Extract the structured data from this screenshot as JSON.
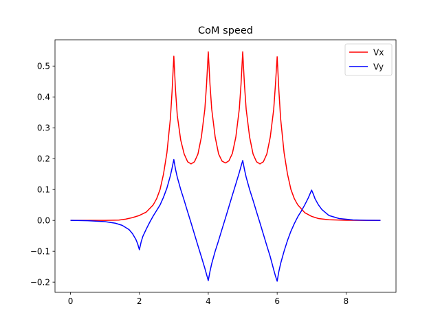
{
  "chart_data": {
    "type": "line",
    "title": "CoM speed",
    "xlabel": "",
    "ylabel": "",
    "xlim": [
      -0.45,
      9.45
    ],
    "ylim": [
      -0.233,
      0.585
    ],
    "xticks": [
      0,
      2,
      4,
      6,
      8
    ],
    "yticks": [
      -0.2,
      -0.1,
      0.0,
      0.1,
      0.2,
      0.3,
      0.4,
      0.5
    ],
    "ytick_labels": [
      "−0.2",
      "−0.1",
      "0.0",
      "0.1",
      "0.2",
      "0.3",
      "0.4",
      "0.5"
    ],
    "xtick_labels": [
      "0",
      "2",
      "4",
      "6",
      "8"
    ],
    "grid": false,
    "legend_position": "top-right",
    "series": [
      {
        "name": "Vx",
        "color": "#ff0000",
        "x": [
          0,
          0.5,
          1.0,
          1.4,
          1.6,
          1.8,
          2.0,
          2.2,
          2.4,
          2.5,
          2.6,
          2.7,
          2.8,
          2.9,
          2.95,
          3.0,
          3.05,
          3.1,
          3.2,
          3.3,
          3.4,
          3.5,
          3.6,
          3.7,
          3.8,
          3.9,
          3.95,
          4.0,
          4.05,
          4.1,
          4.2,
          4.3,
          4.4,
          4.5,
          4.6,
          4.7,
          4.8,
          4.9,
          4.95,
          5.0,
          5.05,
          5.1,
          5.2,
          5.3,
          5.4,
          5.5,
          5.6,
          5.7,
          5.8,
          5.9,
          5.95,
          6.0,
          6.05,
          6.1,
          6.2,
          6.3,
          6.4,
          6.5,
          6.6,
          6.8,
          7.0,
          7.2,
          7.5,
          8.0,
          8.5,
          9.0
        ],
        "y": [
          0.0,
          0.0,
          0.0,
          0.001,
          0.004,
          0.009,
          0.016,
          0.027,
          0.05,
          0.07,
          0.1,
          0.15,
          0.22,
          0.33,
          0.42,
          0.532,
          0.42,
          0.34,
          0.26,
          0.215,
          0.19,
          0.183,
          0.19,
          0.215,
          0.27,
          0.36,
          0.44,
          0.546,
          0.44,
          0.36,
          0.27,
          0.215,
          0.192,
          0.186,
          0.193,
          0.217,
          0.27,
          0.36,
          0.44,
          0.546,
          0.44,
          0.36,
          0.27,
          0.215,
          0.19,
          0.183,
          0.19,
          0.215,
          0.27,
          0.36,
          0.44,
          0.53,
          0.42,
          0.33,
          0.22,
          0.15,
          0.1,
          0.07,
          0.05,
          0.025,
          0.013,
          0.006,
          0.002,
          0.0005,
          0.0001,
          0.0
        ]
      },
      {
        "name": "Vy",
        "color": "#0000ff",
        "x": [
          0,
          0.5,
          1.0,
          1.3,
          1.5,
          1.7,
          1.8,
          1.9,
          1.95,
          2.0,
          2.05,
          2.1,
          2.2,
          2.3,
          2.4,
          2.5,
          2.6,
          2.7,
          2.8,
          2.9,
          2.95,
          3.0,
          3.05,
          3.1,
          3.2,
          3.3,
          3.4,
          3.5,
          3.6,
          3.7,
          3.8,
          3.9,
          3.95,
          4.0,
          4.05,
          4.1,
          4.2,
          4.3,
          4.4,
          4.5,
          4.6,
          4.7,
          4.8,
          4.9,
          4.95,
          5.0,
          5.05,
          5.1,
          5.2,
          5.3,
          5.4,
          5.5,
          5.6,
          5.7,
          5.8,
          5.9,
          5.95,
          6.0,
          6.05,
          6.1,
          6.2,
          6.3,
          6.4,
          6.5,
          6.6,
          6.7,
          6.8,
          6.9,
          6.95,
          7.0,
          7.05,
          7.1,
          7.2,
          7.3,
          7.5,
          7.8,
          8.2,
          8.6,
          9.0
        ],
        "y": [
          0.0,
          -0.001,
          -0.004,
          -0.009,
          -0.016,
          -0.03,
          -0.043,
          -0.062,
          -0.076,
          -0.095,
          -0.07,
          -0.052,
          -0.028,
          -0.006,
          0.014,
          0.032,
          0.05,
          0.075,
          0.105,
          0.145,
          0.17,
          0.197,
          0.165,
          0.14,
          0.1,
          0.065,
          0.028,
          -0.008,
          -0.045,
          -0.082,
          -0.118,
          -0.155,
          -0.175,
          -0.195,
          -0.165,
          -0.14,
          -0.1,
          -0.065,
          -0.028,
          0.008,
          0.045,
          0.082,
          0.118,
          0.155,
          0.175,
          0.194,
          0.165,
          0.14,
          0.1,
          0.065,
          0.028,
          -0.008,
          -0.045,
          -0.082,
          -0.118,
          -0.16,
          -0.18,
          -0.197,
          -0.165,
          -0.14,
          -0.1,
          -0.065,
          -0.035,
          -0.01,
          0.012,
          0.03,
          0.05,
          0.072,
          0.085,
          0.098,
          0.085,
          0.07,
          0.05,
          0.035,
          0.016,
          0.006,
          0.0015,
          0.0003,
          0.0
        ]
      }
    ]
  }
}
